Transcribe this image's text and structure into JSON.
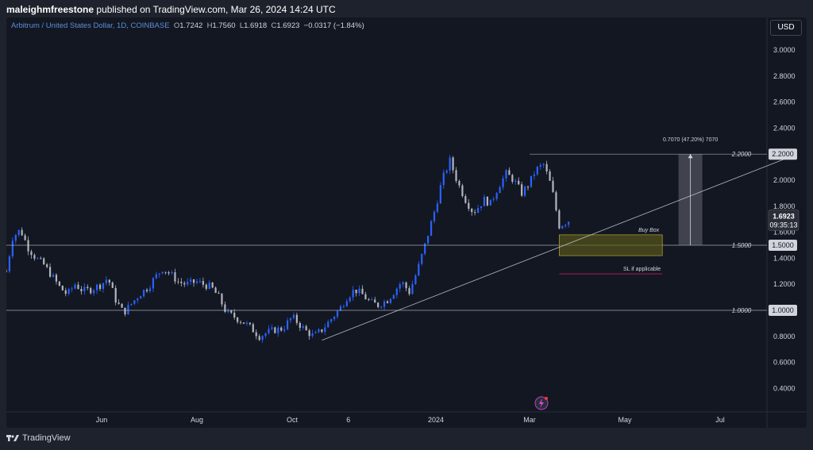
{
  "header": {
    "author": "maleighmfreestone",
    "published_text": "published on TradingView.com, Mar 26, 2024 14:24 UTC"
  },
  "legend": {
    "symbol": "Arbitrum / United States Dollar, 1D, COINBASE",
    "o_label": "O",
    "o_value": "1.7242",
    "h_label": "H",
    "h_value": "1.7560",
    "l_label": "L",
    "l_value": "1.6918",
    "c_label": "C",
    "c_value": "1.6923",
    "change": "−0.0317 (−1.84%)"
  },
  "currency_button": "USD",
  "price_axis": {
    "ticks": [
      "3.0000",
      "2.8000",
      "2.6000",
      "2.4000",
      "2.2000",
      "2.0000",
      "1.8000",
      "1.6000",
      "1.4000",
      "1.2000",
      "1.0000",
      "0.8000",
      "0.6000",
      "0.4000"
    ],
    "last_price": "1.6923",
    "countdown": "09:35:13"
  },
  "time_axis": {
    "ticks": [
      "Jun",
      "Aug",
      "Oct",
      "6",
      "2024",
      "Mar",
      "May",
      "Jul"
    ]
  },
  "annotations": {
    "level_220": "2.2000",
    "level_150": "1.5000",
    "level_100": "1.0000",
    "buy_box": "Buy Box",
    "sl": "SL if applicable",
    "measure": "0.7070 (47.20%) 7070"
  },
  "footer": {
    "brand": "TradingView"
  },
  "colors": {
    "up": "#2962ff",
    "down": "#b2b5be",
    "background": "#131722",
    "buy_box_fill": "#5c5a1a",
    "buy_box_border": "#b8a33a",
    "sl_line": "#c2185b",
    "level_line": "#d1d4dc"
  },
  "chart_data": {
    "type": "candlestick",
    "title": "Arbitrum / United States Dollar, 1D, COINBASE",
    "ylim": [
      0.3,
      3.1
    ],
    "x_range": [
      "2023-04-01",
      "2024-07-31"
    ],
    "candles": [
      [
        "2023-04-01",
        1.3
      ],
      [
        "2023-04-05",
        1.56
      ],
      [
        "2023-04-10",
        1.62
      ],
      [
        "2023-04-15",
        1.48
      ],
      [
        "2023-04-20",
        1.4
      ],
      [
        "2023-04-25",
        1.35
      ],
      [
        "2023-05-01",
        1.25
      ],
      [
        "2023-05-05",
        1.18
      ],
      [
        "2023-05-10",
        1.12
      ],
      [
        "2023-05-15",
        1.2
      ],
      [
        "2023-05-20",
        1.15
      ],
      [
        "2023-05-25",
        1.16
      ],
      [
        "2023-06-01",
        1.2
      ],
      [
        "2023-06-05",
        1.25
      ],
      [
        "2023-06-10",
        1.08
      ],
      [
        "2023-06-15",
        0.98
      ],
      [
        "2023-06-20",
        1.05
      ],
      [
        "2023-06-25",
        1.12
      ],
      [
        "2023-07-01",
        1.18
      ],
      [
        "2023-07-05",
        1.25
      ],
      [
        "2023-07-10",
        1.32
      ],
      [
        "2023-07-15",
        1.28
      ],
      [
        "2023-07-20",
        1.22
      ],
      [
        "2023-07-25",
        1.2
      ],
      [
        "2023-08-01",
        1.22
      ],
      [
        "2023-08-05",
        1.2
      ],
      [
        "2023-08-10",
        1.18
      ],
      [
        "2023-08-15",
        1.1
      ],
      [
        "2023-08-20",
        0.98
      ],
      [
        "2023-08-25",
        0.95
      ],
      [
        "2023-09-01",
        0.9
      ],
      [
        "2023-09-05",
        0.86
      ],
      [
        "2023-09-10",
        0.8
      ],
      [
        "2023-09-15",
        0.83
      ],
      [
        "2023-09-20",
        0.85
      ],
      [
        "2023-09-25",
        0.86
      ],
      [
        "2023-10-01",
        0.95
      ],
      [
        "2023-10-05",
        0.9
      ],
      [
        "2023-10-10",
        0.84
      ],
      [
        "2023-10-15",
        0.8
      ],
      [
        "2023-10-20",
        0.85
      ],
      [
        "2023-10-25",
        0.92
      ],
      [
        "2023-11-01",
        1.02
      ],
      [
        "2023-11-05",
        1.1
      ],
      [
        "2023-11-10",
        1.16
      ],
      [
        "2023-11-15",
        1.12
      ],
      [
        "2023-11-20",
        1.06
      ],
      [
        "2023-11-25",
        1.04
      ],
      [
        "2023-12-01",
        1.08
      ],
      [
        "2023-12-05",
        1.14
      ],
      [
        "2023-12-10",
        1.22
      ],
      [
        "2023-12-15",
        1.14
      ],
      [
        "2023-12-20",
        1.3
      ],
      [
        "2023-12-25",
        1.5
      ],
      [
        "2024-01-01",
        1.8
      ],
      [
        "2024-01-05",
        2.0
      ],
      [
        "2024-01-10",
        2.15
      ],
      [
        "2024-01-15",
        1.98
      ],
      [
        "2024-01-20",
        1.85
      ],
      [
        "2024-01-25",
        1.75
      ],
      [
        "2024-02-01",
        1.85
      ],
      [
        "2024-02-05",
        1.82
      ],
      [
        "2024-02-10",
        1.95
      ],
      [
        "2024-02-15",
        2.05
      ],
      [
        "2024-02-20",
        2.0
      ],
      [
        "2024-02-25",
        1.9
      ],
      [
        "2024-03-01",
        1.98
      ],
      [
        "2024-03-05",
        2.08
      ],
      [
        "2024-03-10",
        2.12
      ],
      [
        "2024-03-15",
        1.95
      ],
      [
        "2024-03-20",
        1.65
      ],
      [
        "2024-03-26",
        1.69
      ]
    ],
    "levels": [
      2.2,
      1.5,
      1.0
    ],
    "buy_box": {
      "from": "2024-03-20",
      "to": "2024-05-25",
      "low": 1.42,
      "high": 1.58
    },
    "sl": {
      "from": "2024-03-20",
      "to": "2024-05-25",
      "price": 1.28
    },
    "measure": {
      "date": "2024-06-12",
      "low": 1.5,
      "high": 2.2
    },
    "trendline": {
      "from": [
        "2023-10-20",
        0.77
      ],
      "to": [
        "2024-08-15",
        2.18
      ]
    }
  }
}
